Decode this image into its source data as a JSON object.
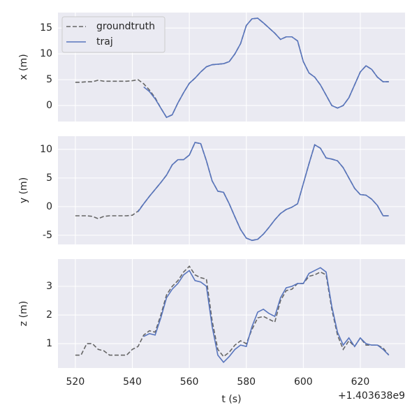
{
  "chart_data": [
    {
      "type": "line",
      "ylabel": "x (m)",
      "x": [
        520,
        522,
        524,
        526,
        528,
        530,
        532,
        534,
        536,
        538,
        540,
        542,
        544,
        546,
        548,
        550,
        552,
        554,
        556,
        558,
        560,
        562,
        564,
        566,
        568,
        570,
        572,
        574,
        576,
        578,
        580,
        582,
        584,
        586,
        588,
        590,
        592,
        594,
        596,
        598,
        600,
        602,
        604,
        606,
        608,
        610,
        612,
        614,
        616,
        618,
        620,
        622,
        624,
        626,
        628,
        630
      ],
      "xlim": [
        513.9,
        635.7
      ],
      "xticks": [
        520,
        540,
        560,
        580,
        600,
        620
      ],
      "ylim": [
        -3.1,
        18
      ],
      "yticks": [
        0,
        5,
        10,
        15
      ],
      "grid": true,
      "legend": "upper left",
      "series": [
        {
          "name": "groundtruth",
          "color": "#666666",
          "linestyle": "dashed",
          "values": [
            4.5,
            4.5,
            4.6,
            4.6,
            4.9,
            4.7,
            4.7,
            4.7,
            4.7,
            4.7,
            4.8,
            5.0,
            4.2,
            3.0,
            1.5,
            -0.5,
            -2.3,
            -1.8,
            0.5,
            2.5,
            4.3,
            5.3,
            6.5,
            7.5,
            7.9,
            8.0,
            8.1,
            8.5,
            10.0,
            12.0,
            15.5,
            16.8,
            16.9,
            16.0,
            15.0,
            14.0,
            12.8,
            13.3,
            13.3,
            12.5,
            8.5,
            6.3,
            5.5,
            4.0,
            2.0,
            0.0,
            -0.5,
            0.0,
            1.5,
            4.0,
            6.5,
            7.7,
            7.0,
            5.5,
            4.6,
            4.6
          ]
        },
        {
          "name": "traj",
          "color": "#5875bd",
          "linestyle": "solid",
          "values": [
            null,
            null,
            null,
            null,
            null,
            null,
            null,
            null,
            null,
            null,
            null,
            null,
            3.6,
            2.7,
            1.3,
            -0.5,
            -2.3,
            -1.8,
            0.5,
            2.5,
            4.3,
            5.3,
            6.5,
            7.5,
            7.9,
            8.0,
            8.1,
            8.5,
            10.0,
            12.0,
            15.5,
            16.8,
            16.9,
            16.0,
            15.0,
            14.0,
            12.8,
            13.3,
            13.3,
            12.5,
            8.5,
            6.3,
            5.5,
            4.0,
            2.0,
            0.0,
            -0.5,
            0.0,
            1.5,
            4.0,
            6.5,
            7.7,
            7.0,
            5.5,
            4.6,
            4.6
          ]
        }
      ]
    },
    {
      "type": "line",
      "ylabel": "y (m)",
      "x": [
        520,
        522,
        524,
        526,
        528,
        530,
        532,
        534,
        536,
        538,
        540,
        542,
        544,
        546,
        548,
        550,
        552,
        554,
        556,
        558,
        560,
        562,
        564,
        566,
        568,
        570,
        572,
        574,
        576,
        578,
        580,
        582,
        584,
        586,
        588,
        590,
        592,
        594,
        596,
        598,
        600,
        602,
        604,
        606,
        608,
        610,
        612,
        614,
        616,
        618,
        620,
        622,
        624,
        626,
        628,
        630
      ],
      "xlim": [
        513.9,
        635.7
      ],
      "xticks": [
        520,
        540,
        560,
        580,
        600,
        620
      ],
      "ylim": [
        -6.6,
        12.3
      ],
      "yticks": [
        -5,
        0,
        5,
        10
      ],
      "grid": true,
      "series": [
        {
          "name": "groundtruth",
          "color": "#666666",
          "linestyle": "dashed",
          "values": [
            -1.6,
            -1.6,
            -1.6,
            -1.7,
            -2.1,
            -1.7,
            -1.6,
            -1.6,
            -1.6,
            -1.6,
            -1.5,
            -0.8,
            0.5,
            1.8,
            3.0,
            4.2,
            5.5,
            7.3,
            8.2,
            8.2,
            9.0,
            11.2,
            11.0,
            8.0,
            4.5,
            2.7,
            2.5,
            0.5,
            -1.8,
            -4.0,
            -5.5,
            -5.9,
            -5.7,
            -4.8,
            -3.6,
            -2.3,
            -1.2,
            -0.5,
            -0.1,
            0.5,
            4.0,
            7.5,
            10.8,
            10.2,
            8.5,
            8.3,
            8.0,
            6.8,
            5.0,
            3.2,
            2.1,
            2.0,
            1.3,
            0.2,
            -1.6,
            -1.6
          ]
        },
        {
          "name": "traj",
          "color": "#5875bd",
          "linestyle": "solid",
          "values": [
            null,
            null,
            null,
            null,
            null,
            null,
            null,
            null,
            null,
            null,
            null,
            -0.9,
            0.5,
            1.8,
            3.0,
            4.2,
            5.5,
            7.3,
            8.2,
            8.2,
            9.0,
            11.2,
            11.0,
            8.0,
            4.5,
            2.7,
            2.5,
            0.5,
            -1.8,
            -4.0,
            -5.5,
            -5.9,
            -5.7,
            -4.8,
            -3.6,
            -2.3,
            -1.2,
            -0.5,
            -0.1,
            0.5,
            4.0,
            7.5,
            10.8,
            10.2,
            8.5,
            8.3,
            8.0,
            6.8,
            5.0,
            3.2,
            2.1,
            2.0,
            1.3,
            0.2,
            -1.6,
            -1.6
          ]
        }
      ]
    },
    {
      "type": "line",
      "ylabel": "z (m)",
      "xlabel": "t (s)",
      "x_offset": "+1.403638e9",
      "x": [
        520,
        522,
        524,
        526,
        528,
        530,
        532,
        534,
        536,
        538,
        540,
        542,
        544,
        546,
        548,
        550,
        552,
        554,
        556,
        558,
        560,
        562,
        564,
        566,
        568,
        570,
        572,
        574,
        576,
        578,
        580,
        582,
        584,
        586,
        588,
        590,
        592,
        594,
        596,
        598,
        600,
        602,
        604,
        606,
        608,
        610,
        612,
        614,
        616,
        618,
        620,
        622,
        624,
        626,
        628,
        630
      ],
      "xlim": [
        513.9,
        635.7
      ],
      "xticks": [
        520,
        540,
        560,
        580,
        600,
        620
      ],
      "xtick_labels": true,
      "ylim": [
        0.15,
        3.95
      ],
      "yticks": [
        1,
        2,
        3
      ],
      "grid": true,
      "series": [
        {
          "name": "groundtruth",
          "color": "#666666",
          "linestyle": "dashed",
          "values": [
            0.6,
            0.6,
            1.0,
            1.0,
            0.8,
            0.75,
            0.6,
            0.6,
            0.6,
            0.6,
            0.8,
            0.9,
            1.3,
            1.45,
            1.4,
            2.0,
            2.7,
            3.0,
            3.2,
            3.5,
            3.7,
            3.4,
            3.3,
            3.25,
            1.8,
            0.8,
            0.55,
            0.7,
            0.95,
            1.1,
            1.0,
            1.5,
            1.9,
            1.95,
            1.85,
            1.75,
            2.5,
            2.85,
            2.9,
            3.1,
            3.1,
            3.35,
            3.4,
            3.5,
            3.4,
            2.2,
            1.3,
            0.8,
            1.1,
            0.9,
            1.2,
            0.95,
            0.95,
            0.95,
            0.85,
            0.6
          ]
        },
        {
          "name": "traj",
          "color": "#5875bd",
          "linestyle": "solid",
          "values": [
            null,
            null,
            null,
            null,
            null,
            null,
            null,
            null,
            null,
            null,
            null,
            null,
            1.25,
            1.35,
            1.3,
            1.9,
            2.6,
            2.9,
            3.1,
            3.4,
            3.55,
            3.2,
            3.15,
            3.0,
            1.6,
            0.6,
            0.35,
            0.55,
            0.8,
            0.95,
            0.9,
            1.6,
            2.1,
            2.2,
            2.05,
            1.95,
            2.6,
            2.95,
            3.0,
            3.1,
            3.1,
            3.45,
            3.55,
            3.65,
            3.5,
            2.3,
            1.4,
            0.95,
            1.2,
            0.9,
            1.2,
            1.0,
            0.95,
            0.95,
            0.8,
            0.6
          ]
        }
      ]
    }
  ]
}
